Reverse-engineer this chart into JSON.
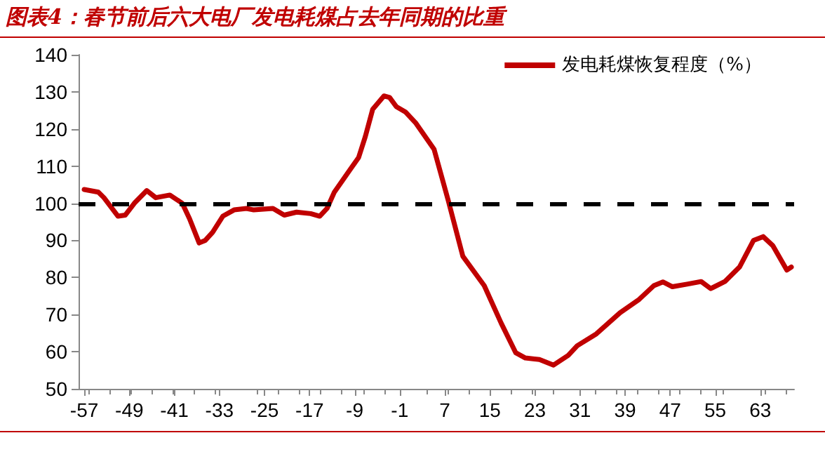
{
  "chart_data": {
    "type": "line",
    "title": "图表4：春节前后六大电厂发电耗煤占去年同期的比重",
    "x": [
      -57,
      -54.5,
      -53.5,
      -51,
      -49.7,
      -48.1,
      -45.9,
      -44.3,
      -41.8,
      -39.6,
      -38.3,
      -36.6,
      -35.5,
      -34.2,
      -32.4,
      -30.4,
      -28.2,
      -26.9,
      -23.5,
      -21.5,
      -19.3,
      -16.8,
      -15.2,
      -13.9,
      -12.6,
      -9.6,
      -8.3,
      -7.1,
      -5.8,
      -3.8,
      -2.8,
      -1.6,
      0,
      1.8,
      5.1,
      7.6,
      10.2,
      14,
      17,
      19.6,
      21.3,
      23.8,
      26.3,
      28.9,
      30.5,
      33.9,
      38.1,
      41.5,
      44.1,
      45.7,
      47.4,
      50,
      52.5,
      54.2,
      56.7,
      59.3,
      61.8,
      63.5,
      65.2,
      67.7,
      68.5
    ],
    "series": [
      {
        "name": "发电耗煤恢复程度（%）",
        "color": "#c00000",
        "values": [
          103.7,
          103,
          101.5,
          96.5,
          96.8,
          100,
          103.4,
          101.5,
          102.2,
          100,
          95.8,
          89.3,
          90,
          92.2,
          96.5,
          98.2,
          98.6,
          98.2,
          98.6,
          96.8,
          97.6,
          97.2,
          96.5,
          98.6,
          103,
          109.5,
          112.3,
          118,
          125.3,
          128.9,
          128.5,
          126,
          124.6,
          121.7,
          114.5,
          100.8,
          85.7,
          77.8,
          67.7,
          59.7,
          58.3,
          57.9,
          56.4,
          59,
          61.6,
          64.8,
          70.5,
          74.1,
          77.8,
          78.8,
          77.5,
          78.2,
          78.9,
          77,
          78.9,
          82.8,
          90,
          91,
          88.6,
          82,
          82.8
        ]
      }
    ],
    "xlim": [
      -58,
      69
    ],
    "xticks": [
      -57,
      -49,
      -41,
      -33,
      -25,
      -17,
      -9,
      -1,
      7,
      15,
      23,
      31,
      39,
      47,
      55,
      63
    ],
    "ylim": [
      50,
      140
    ],
    "yticks": [
      50,
      60,
      70,
      80,
      90,
      100,
      110,
      120,
      130,
      140
    ],
    "ref_lines": [
      {
        "axis": "y",
        "value": 100,
        "color": "#000000",
        "line_style": "dashed"
      }
    ],
    "legend": "top right",
    "grid": false,
    "marker": "none",
    "line_style": "solid"
  }
}
